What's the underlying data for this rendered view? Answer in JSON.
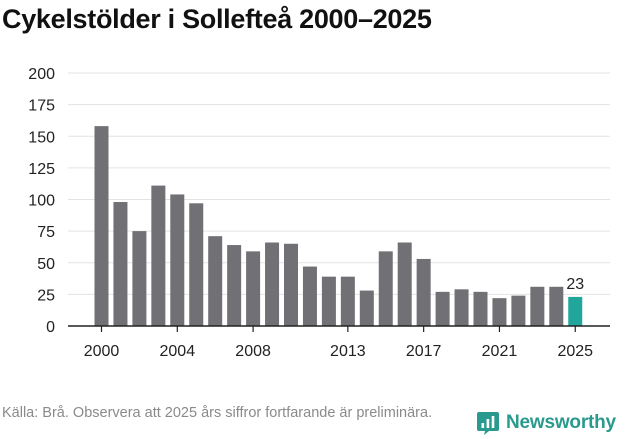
{
  "title": "Cykelstölder i Sollefteå 2000–2025",
  "source": "Källa: Brå. Observera att 2025 års siffror fortfarande är preliminära.",
  "brand": {
    "name": "Newsworthy",
    "icon": "newsworthy-logo-icon",
    "color": "#2a9a8e"
  },
  "chart_data": {
    "type": "bar",
    "title": "Cykelstölder i Sollefteå 2000–2025",
    "xlabel": "",
    "ylabel": "",
    "ylim": [
      0,
      200
    ],
    "yticks": [
      0,
      25,
      50,
      75,
      100,
      125,
      150,
      175,
      200
    ],
    "xtick_labels": [
      "2000",
      "2004",
      "2008",
      "2013",
      "2017",
      "2021",
      "2025"
    ],
    "categories": [
      "2000",
      "2001",
      "2002",
      "2003",
      "2004",
      "2005",
      "2006",
      "2007",
      "2008",
      "2009",
      "2010",
      "2011",
      "2012",
      "2013",
      "2014",
      "2015",
      "2016",
      "2017",
      "2018",
      "2019",
      "2020",
      "2021",
      "2022",
      "2023",
      "2024",
      "2025"
    ],
    "values": [
      158,
      98,
      75,
      111,
      104,
      97,
      71,
      64,
      59,
      66,
      65,
      47,
      39,
      39,
      28,
      59,
      66,
      53,
      27,
      29,
      27,
      22,
      24,
      31,
      31,
      23
    ],
    "highlight": {
      "category": "2025",
      "label": "23"
    },
    "colors": {
      "bar": "#707075",
      "highlight": "#20a69a",
      "grid": "#e3e3e3",
      "axis": "#222222",
      "text": "#222222"
    },
    "grid": true
  }
}
